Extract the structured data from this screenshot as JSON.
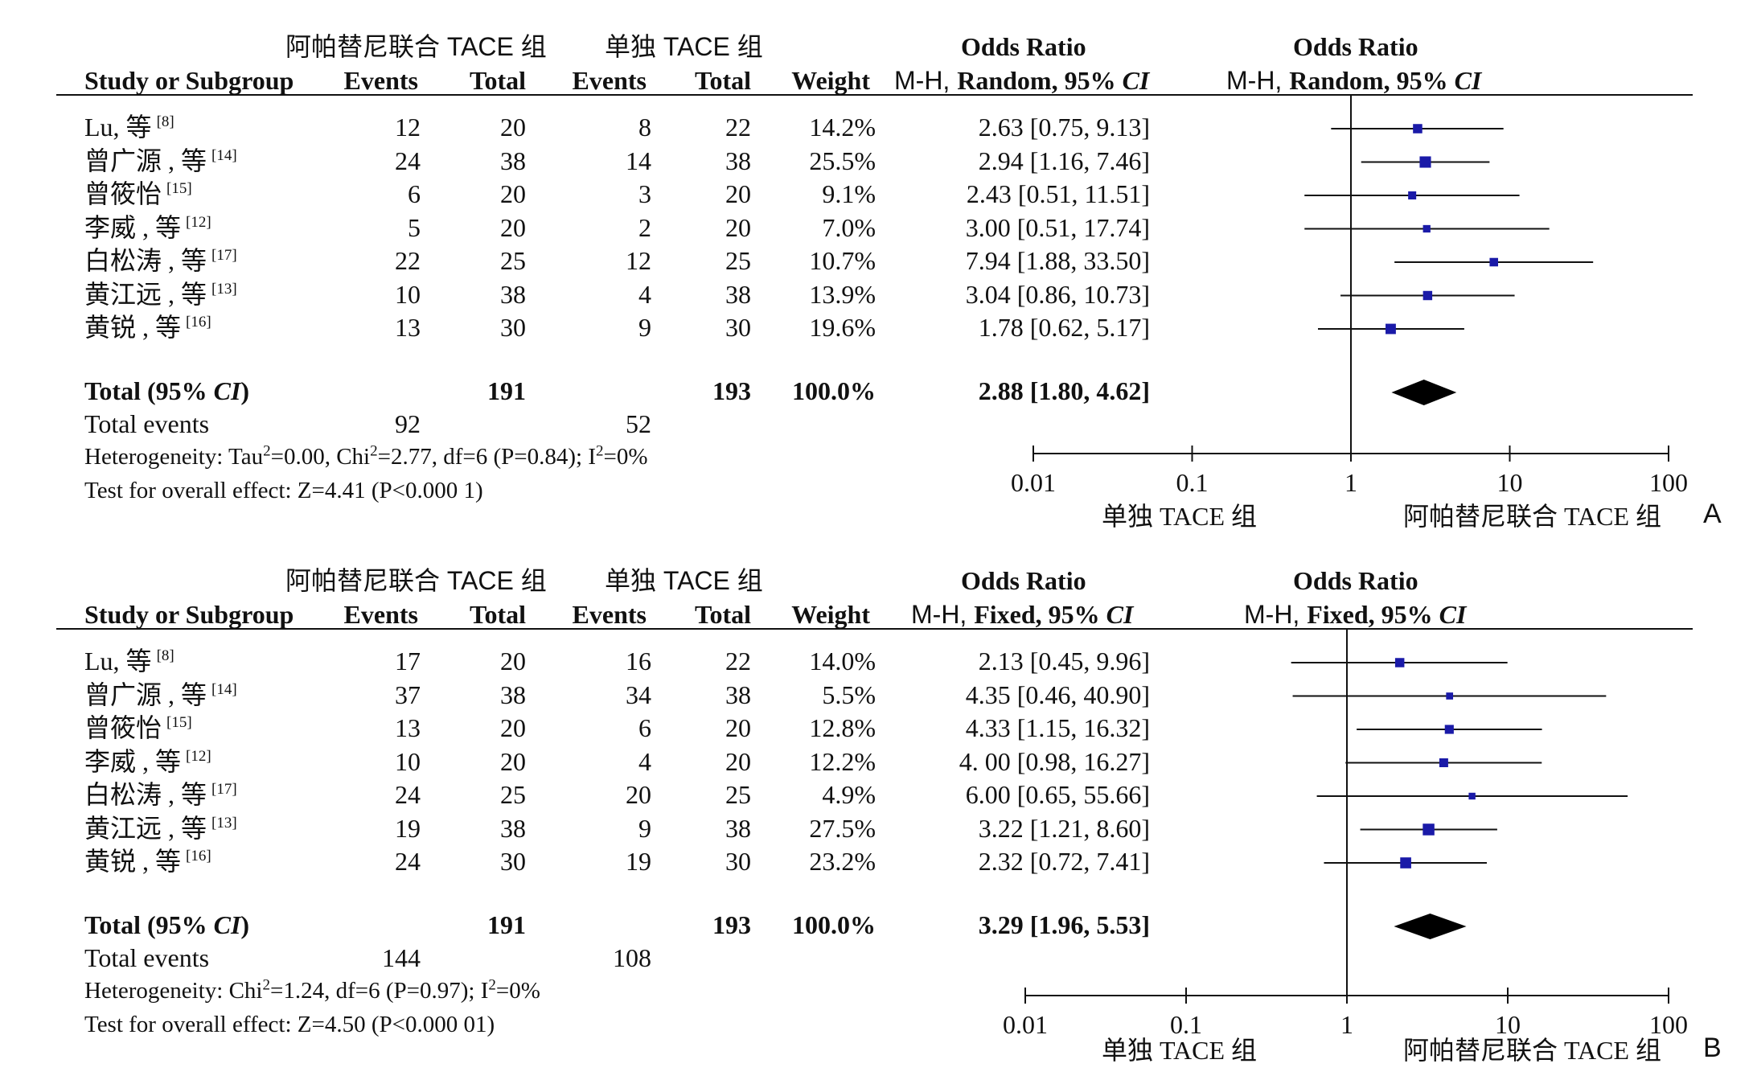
{
  "panels": [
    {
      "id": "A",
      "group_labels": {
        "experimental": "阿帕替尼联合 TACE 组",
        "control": "单独 TACE 组"
      },
      "columns": {
        "study": "Study or Subgroup",
        "events": "Events",
        "total": "Total",
        "events2": "Events",
        "total2": "Total",
        "weight": "Weight",
        "or_title": "Odds Ratio",
        "or_method_prefix": "M-H, ",
        "or_method": "Random, 95%",
        "ci": "CI",
        "plot_title": "Odds Ratio",
        "plot_method_prefix": "M-H, ",
        "plot_method": "Random, 95%",
        "plot_ci": "CI"
      },
      "rows": [
        {
          "name": "Lu, 等",
          "ref": "[8]",
          "e1": "12",
          "t1": "20",
          "e2": "8",
          "t2": "22",
          "weight": "14.2%",
          "or_text": "2.63 [0.75, 9.13]"
        },
        {
          "name": "曾广源 , 等",
          "ref": "[14]",
          "e1": "24",
          "t1": "38",
          "e2": "14",
          "t2": "38",
          "weight": "25.5%",
          "or_text": "2.94 [1.16, 7.46]"
        },
        {
          "name": "曾筱怡",
          "ref": "[15]",
          "e1": "6",
          "t1": "20",
          "e2": "3",
          "t2": "20",
          "weight": "9.1%",
          "or_text": "2.43 [0.51, 11.51]"
        },
        {
          "name": "李威 , 等",
          "ref": "[12]",
          "e1": "5",
          "t1": "20",
          "e2": "2",
          "t2": "20",
          "weight": "7.0%",
          "or_text": "3.00 [0.51, 17.74]"
        },
        {
          "name": "白松涛 , 等",
          "ref": "[17]",
          "e1": "22",
          "t1": "25",
          "e2": "12",
          "t2": "25",
          "weight": "10.7%",
          "or_text": "7.94 [1.88, 33.50]"
        },
        {
          "name": "黄江远 , 等",
          "ref": "[13]",
          "e1": "10",
          "t1": "38",
          "e2": "4",
          "t2": "38",
          "weight": "13.9%",
          "or_text": "3.04 [0.86, 10.73]"
        },
        {
          "name": "黄锐 , 等",
          "ref": "[16]",
          "e1": "13",
          "t1": "30",
          "e2": "9",
          "t2": "30",
          "weight": "19.6%",
          "or_text": "1.78 [0.62, 5.17]"
        }
      ],
      "total": {
        "label_pre": "Total (95% ",
        "label_ci": "CI",
        "label_post": ")",
        "t1": "191",
        "t2": "193",
        "weight": "100.0%",
        "or_text": "2.88 [1.80, 4.62]"
      },
      "total_events": {
        "label": "Total events",
        "e1": "92",
        "e2": "52"
      },
      "heterogeneity": {
        "pre": "Heterogeneity: Tau",
        "sup1": "2",
        "mid": "=0.00, Chi",
        "sup2": "2",
        "post": "=2.77, df=6 (P=0.84); I",
        "sup3": "2",
        "end": "=0%"
      },
      "overall": "Test for overall effect: Z=4.41 (P<0.000 1)",
      "axis": {
        "ticks": [
          "0.01",
          "0.1",
          "1",
          "10",
          "100"
        ],
        "left_label": "单独 TACE 组",
        "right_label": "阿帕替尼联合 TACE 组"
      },
      "panel_letter": "A"
    },
    {
      "id": "B",
      "group_labels": {
        "experimental": "阿帕替尼联合 TACE 组",
        "control": "单独 TACE 组"
      },
      "columns": {
        "study": "Study or Subgroup",
        "events": "Events",
        "total": "Total",
        "events2": "Events",
        "total2": "Total",
        "weight": "Weight",
        "or_title": "Odds Ratio",
        "or_method_prefix": "M-H, ",
        "or_method": "Fixed, 95%",
        "ci": "CI",
        "plot_title": "Odds Ratio",
        "plot_method_prefix": "M-H, ",
        "plot_method": "Fixed, 95%",
        "plot_ci": "CI"
      },
      "rows": [
        {
          "name": "Lu, 等",
          "ref": "[8]",
          "e1": "17",
          "t1": "20",
          "e2": "16",
          "t2": "22",
          "weight": "14.0%",
          "or_text": "2.13 [0.45, 9.96]"
        },
        {
          "name": "曾广源 , 等",
          "ref": "[14]",
          "e1": "37",
          "t1": "38",
          "e2": "34",
          "t2": "38",
          "weight": "5.5%",
          "or_text": "4.35 [0.46, 40.90]"
        },
        {
          "name": "曾筱怡",
          "ref": "[15]",
          "e1": "13",
          "t1": "20",
          "e2": "6",
          "t2": "20",
          "weight": "12.8%",
          "or_text": "4.33 [1.15, 16.32]"
        },
        {
          "name": "李威 , 等",
          "ref": "[12]",
          "e1": "10",
          "t1": "20",
          "e2": "4",
          "t2": "20",
          "weight": "12.2%",
          "or_text": "4. 00 [0.98, 16.27]"
        },
        {
          "name": "白松涛 , 等",
          "ref": "[17]",
          "e1": "24",
          "t1": "25",
          "e2": "20",
          "t2": "25",
          "weight": "4.9%",
          "or_text": "6.00 [0.65, 55.66]"
        },
        {
          "name": "黄江远 , 等",
          "ref": "[13]",
          "e1": "19",
          "t1": "38",
          "e2": "9",
          "t2": "38",
          "weight": "27.5%",
          "or_text": "3.22 [1.21, 8.60]"
        },
        {
          "name": "黄锐 , 等",
          "ref": "[16]",
          "e1": "24",
          "t1": "30",
          "e2": "19",
          "t2": "30",
          "weight": "23.2%",
          "or_text": "2.32 [0.72, 7.41]"
        }
      ],
      "total": {
        "label_pre": "Total (95% ",
        "label_ci": "CI",
        "label_post": ")",
        "t1": "191",
        "t2": "193",
        "weight": "100.0%",
        "or_text": "3.29 [1.96, 5.53]"
      },
      "total_events": {
        "label": "Total events",
        "e1": "144",
        "e2": "108"
      },
      "heterogeneity": {
        "pre": "Heterogeneity: Chi",
        "sup1": "2",
        "mid": "=1.24, df=6 (P=0.97); I",
        "sup2": "2",
        "post": "=0%",
        "sup3": "",
        "end": ""
      },
      "overall": "Test for overall effect: Z=4.50 (P<0.000 01)",
      "axis": {
        "ticks": [
          "0.01",
          "0.1",
          "1",
          "10",
          "100"
        ],
        "left_label": "单独 TACE 组",
        "right_label": "阿帕替尼联合 TACE 组"
      },
      "panel_letter": "B"
    }
  ],
  "chart_data": [
    {
      "type": "forest",
      "scale": "log",
      "xlim": [
        0.01,
        100
      ],
      "ref_line": 1,
      "studies": [
        {
          "or": 2.63,
          "lo": 0.75,
          "hi": 9.13,
          "weight": 14.2
        },
        {
          "or": 2.94,
          "lo": 1.16,
          "hi": 7.46,
          "weight": 25.5
        },
        {
          "or": 2.43,
          "lo": 0.51,
          "hi": 11.51,
          "weight": 9.1
        },
        {
          "or": 3.0,
          "lo": 0.51,
          "hi": 17.74,
          "weight": 7.0
        },
        {
          "or": 7.94,
          "lo": 1.88,
          "hi": 33.5,
          "weight": 10.7
        },
        {
          "or": 3.04,
          "lo": 0.86,
          "hi": 10.73,
          "weight": 13.9
        },
        {
          "or": 1.78,
          "lo": 0.62,
          "hi": 5.17,
          "weight": 19.6
        }
      ],
      "pooled": {
        "or": 2.88,
        "lo": 1.8,
        "hi": 4.62
      },
      "marker_color": "#1a1aa8"
    },
    {
      "type": "forest",
      "scale": "log",
      "xlim": [
        0.01,
        100
      ],
      "ref_line": 1,
      "studies": [
        {
          "or": 2.13,
          "lo": 0.45,
          "hi": 9.96,
          "weight": 14.0
        },
        {
          "or": 4.35,
          "lo": 0.46,
          "hi": 40.9,
          "weight": 5.5
        },
        {
          "or": 4.33,
          "lo": 1.15,
          "hi": 16.32,
          "weight": 12.8
        },
        {
          "or": 4.0,
          "lo": 0.98,
          "hi": 16.27,
          "weight": 12.2
        },
        {
          "or": 6.0,
          "lo": 0.65,
          "hi": 55.66,
          "weight": 4.9
        },
        {
          "or": 3.22,
          "lo": 1.21,
          "hi": 8.6,
          "weight": 27.5
        },
        {
          "or": 2.32,
          "lo": 0.72,
          "hi": 7.41,
          "weight": 23.2
        }
      ],
      "pooled": {
        "or": 3.29,
        "lo": 1.96,
        "hi": 5.53
      },
      "marker_color": "#1a1aa8"
    }
  ]
}
